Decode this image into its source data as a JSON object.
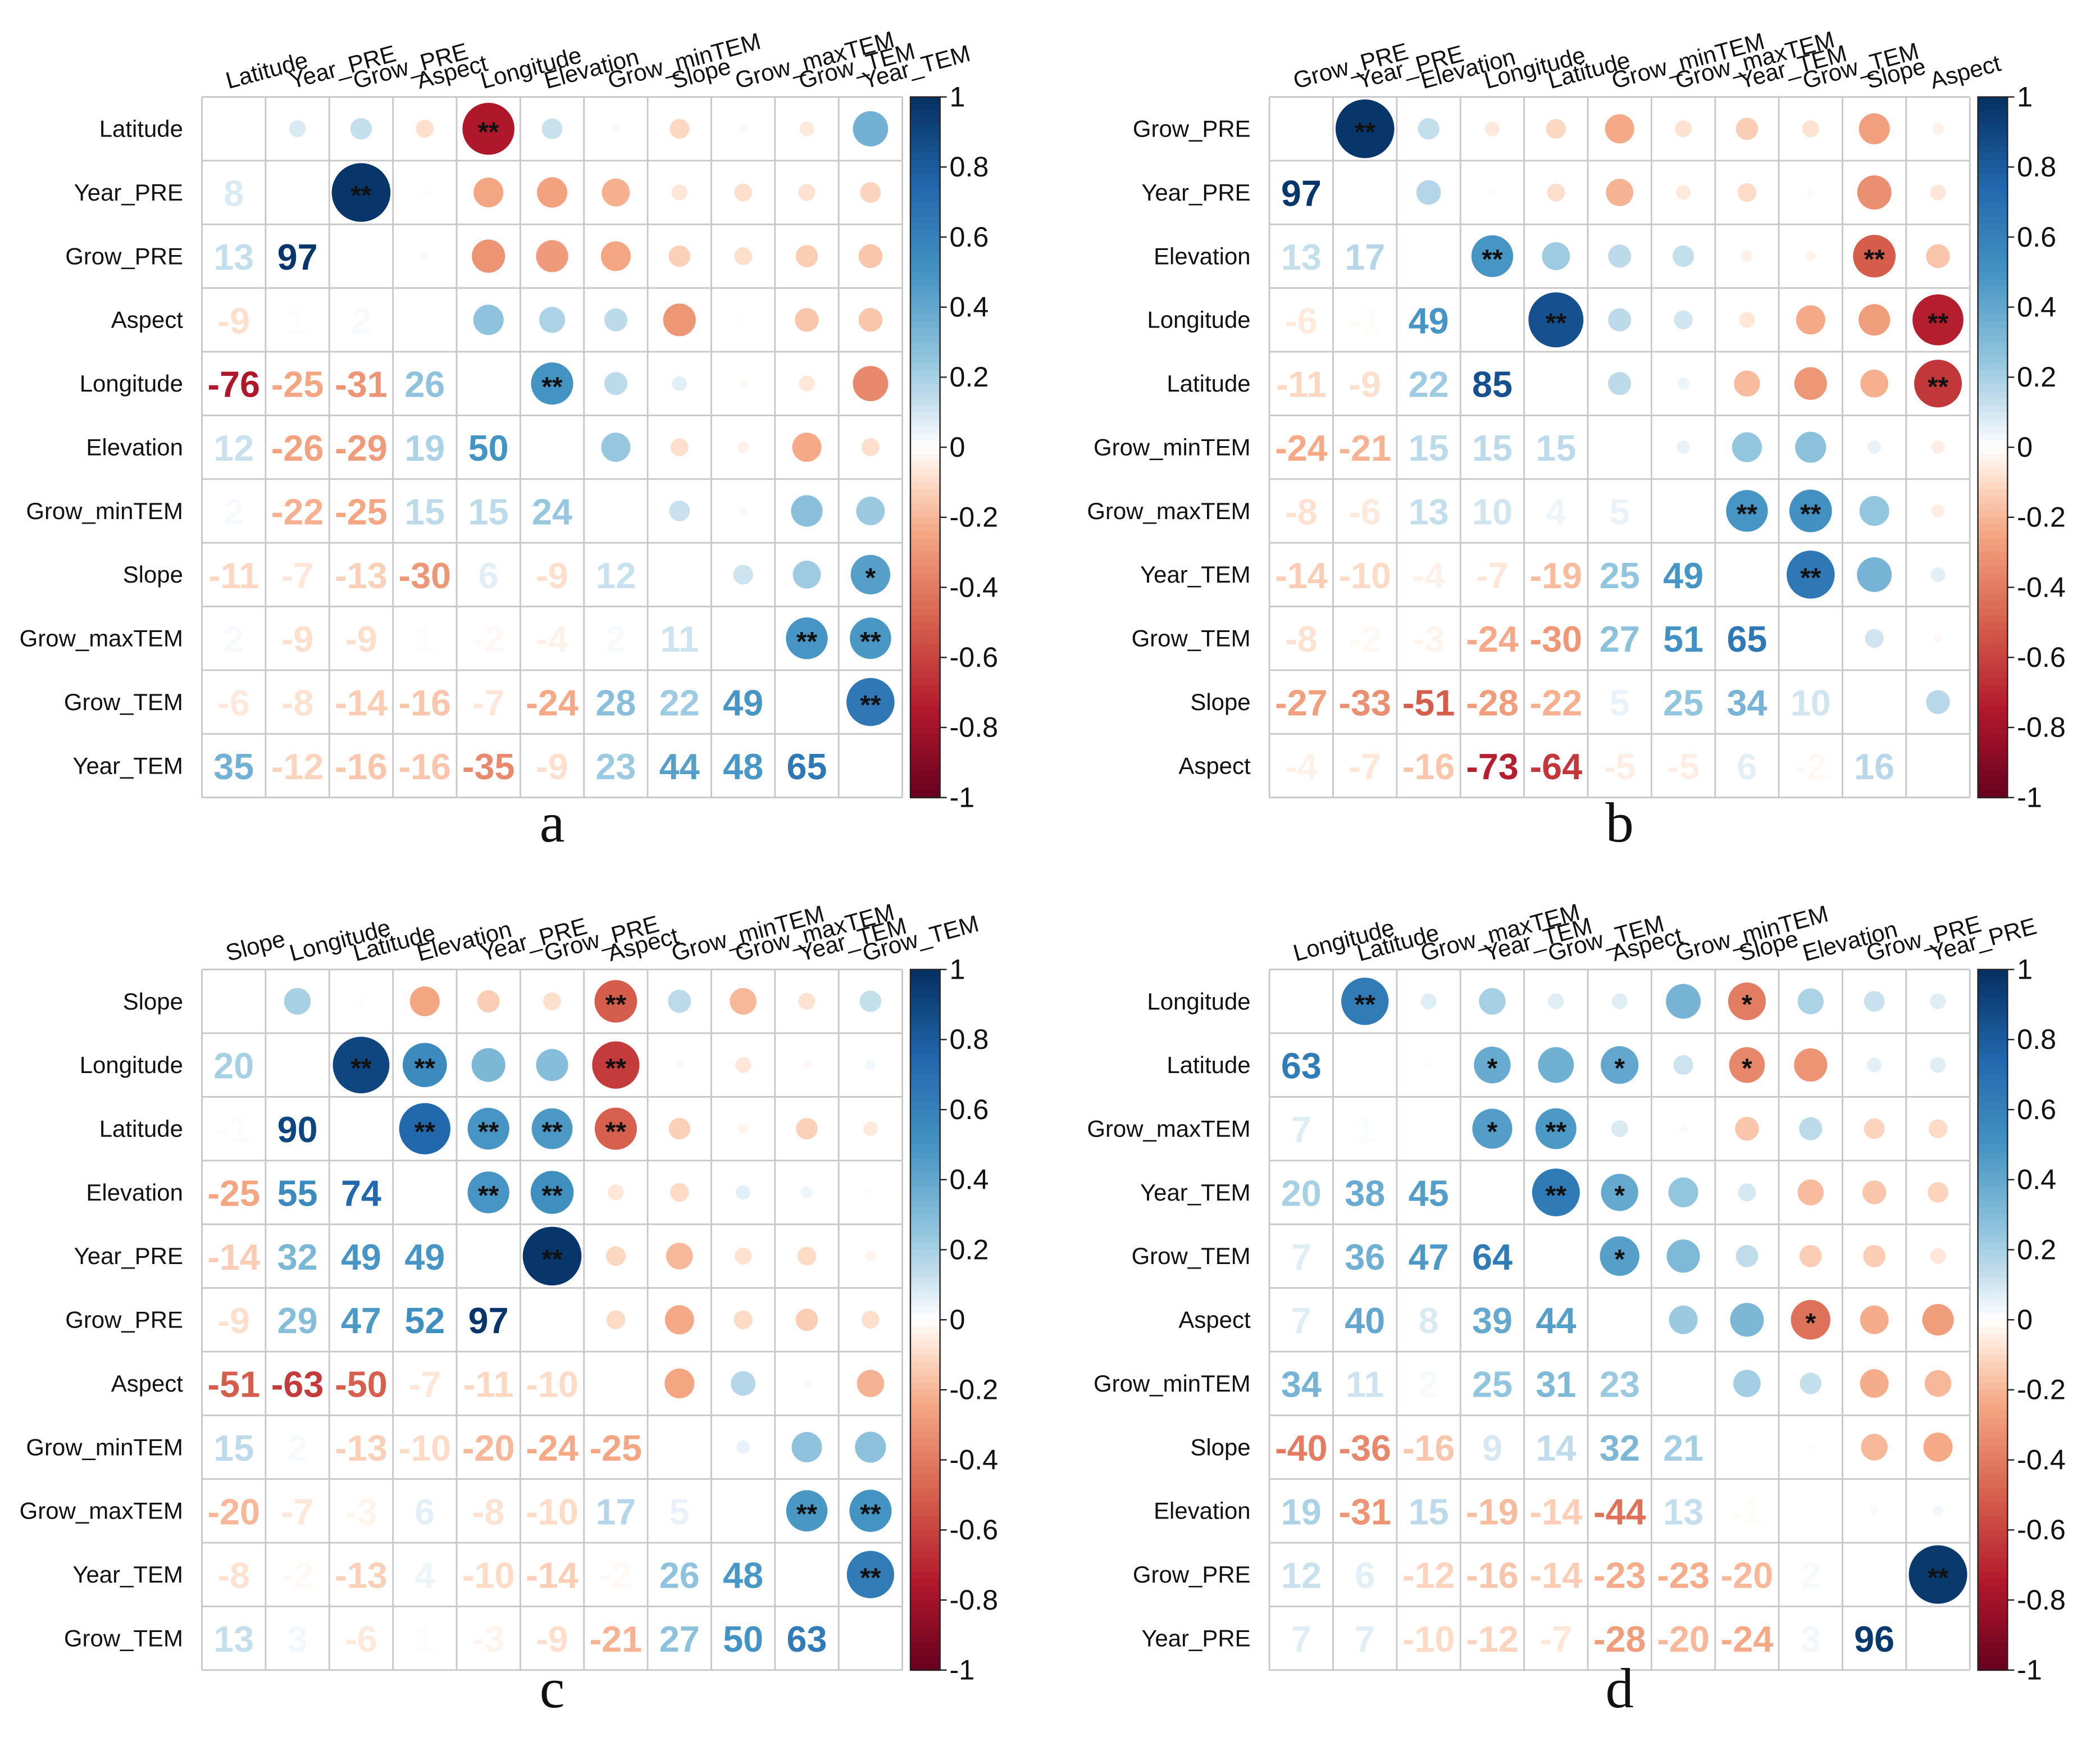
{
  "colorbar": {
    "ticks": [
      "1",
      "0.8",
      "0.6",
      "0.4",
      "0.2",
      "0",
      "-0.2",
      "-0.4",
      "-0.6",
      "-0.8",
      "-1"
    ]
  },
  "chart_data": [
    {
      "type": "heatmap",
      "panel_label": "a",
      "vars": [
        "Latitude",
        "Year_PRE",
        "Grow_PRE",
        "Aspect",
        "Longitude",
        "Elevation",
        "Grow_minTEM",
        "Slope",
        "Grow_maxTEM",
        "Grow_TEM",
        "Year_TEM"
      ],
      "lower": [
        [],
        [
          8
        ],
        [
          13,
          97
        ],
        [
          -9,
          1,
          2
        ],
        [
          -76,
          -25,
          -31,
          26
        ],
        [
          12,
          -26,
          -29,
          19,
          50
        ],
        [
          2,
          -22,
          -25,
          15,
          15,
          24
        ],
        [
          -11,
          -7,
          -13,
          -30,
          6,
          -9,
          12
        ],
        [
          2,
          -9,
          -9,
          1,
          -2,
          -4,
          2,
          11
        ],
        [
          -6,
          -8,
          -14,
          -16,
          -7,
          -24,
          28,
          22,
          49
        ],
        [
          35,
          -12,
          -16,
          -16,
          -35,
          -9,
          23,
          44,
          48,
          65
        ]
      ],
      "sig": [
        [
          0,
          4,
          "**"
        ],
        [
          1,
          2,
          "**"
        ],
        [
          4,
          5,
          "**"
        ],
        [
          7,
          10,
          "*"
        ],
        [
          8,
          9,
          "**"
        ],
        [
          8,
          10,
          "**"
        ],
        [
          9,
          10,
          "**"
        ]
      ]
    },
    {
      "type": "heatmap",
      "panel_label": "b",
      "vars": [
        "Grow_PRE",
        "Year_PRE",
        "Elevation",
        "Longitude",
        "Latitude",
        "Grow_minTEM",
        "Grow_maxTEM",
        "Year_TEM",
        "Grow_TEM",
        "Slope",
        "Aspect"
      ],
      "lower": [
        [],
        [
          97
        ],
        [
          13,
          17
        ],
        [
          -6,
          -1,
          49
        ],
        [
          -11,
          -9,
          22,
          85
        ],
        [
          -24,
          -21,
          15,
          15,
          15
        ],
        [
          -8,
          -6,
          13,
          10,
          4,
          5
        ],
        [
          -14,
          -10,
          -4,
          -7,
          -19,
          25,
          49
        ],
        [
          -8,
          -2,
          -3,
          -24,
          -30,
          27,
          51,
          65
        ],
        [
          -27,
          -33,
          -51,
          -28,
          -22,
          5,
          25,
          34,
          10
        ],
        [
          -4,
          -7,
          -16,
          -73,
          -64,
          -5,
          -5,
          6,
          -2,
          16
        ]
      ],
      "sig": [
        [
          0,
          1,
          "**"
        ],
        [
          2,
          3,
          "**"
        ],
        [
          2,
          9,
          "**"
        ],
        [
          3,
          4,
          "**"
        ],
        [
          3,
          10,
          "**"
        ],
        [
          4,
          10,
          "**"
        ],
        [
          6,
          7,
          "**"
        ],
        [
          6,
          8,
          "**"
        ],
        [
          7,
          8,
          "**"
        ]
      ]
    },
    {
      "type": "heatmap",
      "panel_label": "c",
      "vars": [
        "Slope",
        "Longitude",
        "Latitude",
        "Elevation",
        "Year_PRE",
        "Grow_PRE",
        "Aspect",
        "Grow_minTEM",
        "Grow_maxTEM",
        "Year_TEM",
        "Grow_TEM"
      ],
      "lower": [
        [],
        [
          20
        ],
        [
          -1,
          90
        ],
        [
          -25,
          55,
          74
        ],
        [
          -14,
          32,
          49,
          49
        ],
        [
          -9,
          29,
          47,
          52,
          97
        ],
        [
          -51,
          -63,
          -50,
          -7,
          -11,
          -10
        ],
        [
          15,
          2,
          -13,
          -10,
          -20,
          -24,
          -25
        ],
        [
          -20,
          -7,
          -3,
          6,
          -8,
          -10,
          17,
          5
        ],
        [
          -8,
          -2,
          -13,
          4,
          -10,
          -14,
          -2,
          26,
          48
        ],
        [
          13,
          3,
          -6,
          1,
          -3,
          -9,
          -21,
          27,
          50,
          63
        ]
      ],
      "sig": [
        [
          0,
          6,
          "**"
        ],
        [
          1,
          2,
          "**"
        ],
        [
          1,
          3,
          "**"
        ],
        [
          1,
          6,
          "**"
        ],
        [
          2,
          3,
          "**"
        ],
        [
          2,
          4,
          "**"
        ],
        [
          2,
          5,
          "**"
        ],
        [
          2,
          6,
          "**"
        ],
        [
          3,
          4,
          "**"
        ],
        [
          3,
          5,
          "**"
        ],
        [
          4,
          5,
          "**"
        ],
        [
          8,
          9,
          "**"
        ],
        [
          8,
          10,
          "**"
        ],
        [
          9,
          10,
          "**"
        ]
      ]
    },
    {
      "type": "heatmap",
      "panel_label": "d",
      "vars": [
        "Longitude",
        "Latitude",
        "Grow_maxTEM",
        "Year_TEM",
        "Grow_TEM",
        "Aspect",
        "Grow_minTEM",
        "Slope",
        "Elevation",
        "Grow_PRE",
        "Year_PRE"
      ],
      "lower": [
        [],
        [
          63
        ],
        [
          7,
          1
        ],
        [
          20,
          38,
          45
        ],
        [
          7,
          36,
          47,
          64
        ],
        [
          7,
          40,
          8,
          39,
          44
        ],
        [
          34,
          11,
          2,
          25,
          31,
          23
        ],
        [
          -40,
          -36,
          -16,
          9,
          14,
          32,
          21
        ],
        [
          19,
          -31,
          15,
          -19,
          -14,
          -44,
          13,
          -1
        ],
        [
          12,
          6,
          -12,
          -16,
          -14,
          -23,
          -23,
          -20,
          2
        ],
        [
          7,
          7,
          -10,
          -12,
          -7,
          -28,
          -20,
          -24,
          3,
          96
        ]
      ],
      "sig": [
        [
          0,
          1,
          "**"
        ],
        [
          0,
          7,
          "*"
        ],
        [
          1,
          3,
          "*"
        ],
        [
          1,
          5,
          "*"
        ],
        [
          1,
          7,
          "*"
        ],
        [
          2,
          3,
          "*"
        ],
        [
          2,
          4,
          "**"
        ],
        [
          3,
          4,
          "**"
        ],
        [
          3,
          5,
          "*"
        ],
        [
          4,
          5,
          "*"
        ],
        [
          5,
          8,
          "*"
        ],
        [
          9,
          10,
          "**"
        ]
      ]
    }
  ]
}
